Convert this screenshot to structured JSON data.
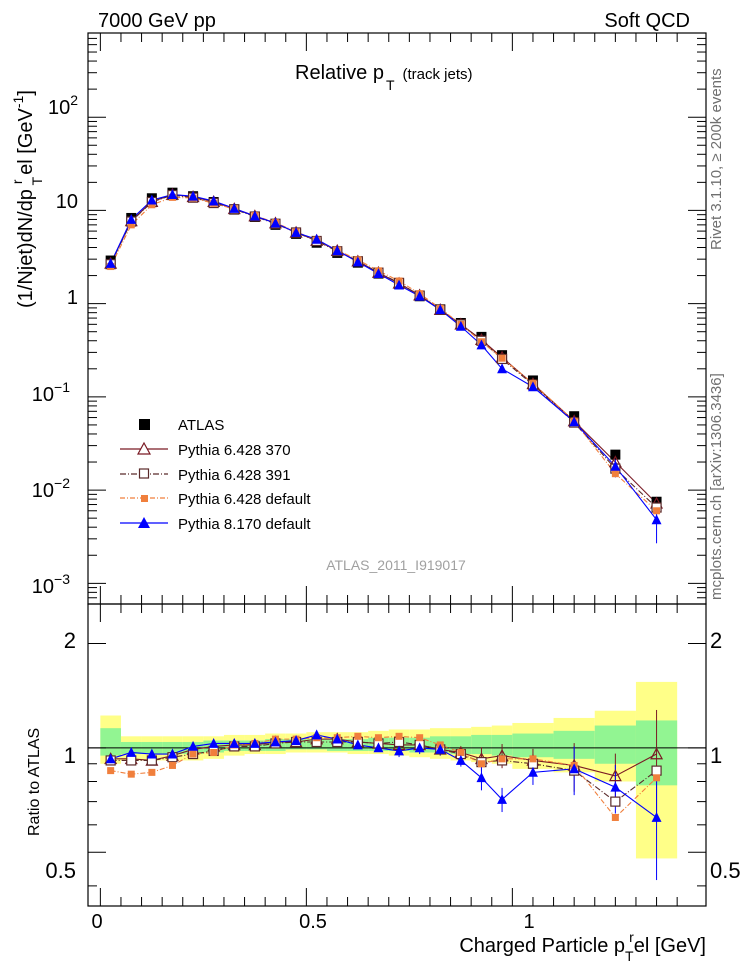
{
  "header": {
    "left": "7000 GeV pp",
    "right": "Soft QCD"
  },
  "plot_title": {
    "main": "Relative p",
    "sub": "T",
    "suffix": "(track jets)"
  },
  "side_labels": {
    "top": "Rivet 3.1.10, ≥ 200k events",
    "bottom": "mcplots.cern.ch [arXiv:1306.3436]"
  },
  "watermark": "ATLAS_2011_I919017",
  "ylabel_main": "(1/Njet)dN/dp",
  "ylabel_super": "r",
  "ylabel_sub": "T",
  "ylabel_tail": "el [GeV",
  "ylabel_unit_sup": "-1",
  "ylabel_close": "]",
  "ylabel_ratio": "Ratio to ATLAS",
  "xlabel_main": "Charged Particle p",
  "xlabel_sub": "T",
  "xlabel_super": "r",
  "xlabel_tail": "el [GeV]",
  "main_tick_labels": [
    "10",
    "10",
    "1",
    "10",
    "10",
    "10"
  ],
  "main_tick_exps": [
    "2",
    "",
    "",
    "−1",
    "−2",
    "−3"
  ],
  "ratio_tick_labels": [
    "2",
    "1",
    "0.5"
  ],
  "x_tick_labels": [
    "0",
    "0.5",
    "1"
  ],
  "legend": [
    {
      "name": "ATLAS",
      "color": "#000000",
      "marker": "filled-square"
    },
    {
      "name": "Pythia 6.428 370",
      "color": "#7a1a24",
      "marker": "open-triangle"
    },
    {
      "name": "Pythia 6.428 391",
      "color": "#5a2a2a",
      "marker": "open-square"
    },
    {
      "name": "Pythia 6.428 default",
      "color": "#f07f3c",
      "marker": "filled-square-small"
    },
    {
      "name": "Pythia 8.170 default",
      "color": "#0000ff",
      "marker": "filled-triangle"
    }
  ],
  "chart_data": [
    {
      "type": "scatter",
      "panel": "main",
      "log_y": true,
      "xlim": [
        -0.03,
        1.47
      ],
      "ylim": [
        0.0006,
        800
      ],
      "x": [
        0.025,
        0.075,
        0.125,
        0.175,
        0.225,
        0.275,
        0.325,
        0.375,
        0.425,
        0.475,
        0.525,
        0.575,
        0.625,
        0.675,
        0.725,
        0.775,
        0.825,
        0.875,
        0.925,
        0.975,
        1.05,
        1.15,
        1.25,
        1.35
      ],
      "series": [
        {
          "name": "ATLAS",
          "values": [
            2.9,
            8.3,
            13.5,
            15.5,
            14.2,
            12.3,
            10.2,
            8.5,
            7.0,
            5.6,
            4.5,
            3.5,
            2.75,
            2.1,
            1.62,
            1.2,
            0.87,
            0.62,
            0.44,
            0.28,
            0.15,
            0.062,
            0.024,
            0.0075
          ]
        },
        {
          "name": "Pythia 6.428 370",
          "values": [
            2.7,
            7.7,
            12.4,
            14.8,
            14.0,
            12.4,
            10.4,
            8.7,
            7.3,
            5.8,
            4.75,
            3.7,
            2.85,
            2.15,
            1.65,
            1.23,
            0.86,
            0.6,
            0.41,
            0.265,
            0.138,
            0.055,
            0.02,
            0.0072
          ]
        },
        {
          "name": "Pythia 6.428 391",
          "values": [
            2.65,
            7.6,
            12.3,
            14.6,
            13.7,
            12.0,
            10.3,
            8.6,
            7.2,
            5.8,
            4.7,
            3.65,
            2.85,
            2.15,
            1.67,
            1.22,
            0.86,
            0.6,
            0.4,
            0.255,
            0.135,
            0.053,
            0.017,
            0.0065
          ]
        },
        {
          "name": "Pythia 6.428 default",
          "values": [
            2.5,
            7.0,
            11.5,
            13.8,
            13.6,
            11.9,
            10.4,
            8.8,
            7.4,
            5.9,
            4.8,
            3.75,
            2.95,
            2.25,
            1.75,
            1.28,
            0.89,
            0.6,
            0.39,
            0.26,
            0.14,
            0.055,
            0.015,
            0.006
          ]
        },
        {
          "name": "Pythia 8.170 default",
          "values": [
            2.7,
            8.0,
            12.9,
            14.8,
            14.2,
            12.6,
            10.5,
            8.7,
            7.3,
            5.8,
            4.9,
            3.7,
            2.8,
            2.1,
            1.58,
            1.2,
            0.86,
            0.57,
            0.36,
            0.2,
            0.128,
            0.054,
            0.018,
            0.0048
          ]
        }
      ]
    },
    {
      "type": "scatter",
      "panel": "ratio",
      "log_y": true,
      "xlim": [
        -0.03,
        1.47
      ],
      "ylim": [
        0.35,
        2.6
      ],
      "x": [
        0.025,
        0.075,
        0.125,
        0.175,
        0.225,
        0.275,
        0.325,
        0.375,
        0.425,
        0.475,
        0.525,
        0.575,
        0.625,
        0.675,
        0.725,
        0.775,
        0.825,
        0.875,
        0.925,
        0.975,
        1.05,
        1.15,
        1.25,
        1.35
      ],
      "band_edges": [
        0.0,
        0.05,
        0.1,
        0.15,
        0.2,
        0.25,
        0.3,
        0.35,
        0.4,
        0.45,
        0.5,
        0.55,
        0.6,
        0.65,
        0.7,
        0.75,
        0.8,
        0.85,
        0.9,
        0.95,
        1.0,
        1.1,
        1.2,
        1.3,
        1.4
      ],
      "band_yellow": [
        [
          0.9,
          1.24
        ],
        [
          0.92,
          1.08
        ],
        [
          0.92,
          1.08
        ],
        [
          0.92,
          1.08
        ],
        [
          0.92,
          1.08
        ],
        [
          0.93,
          1.08
        ],
        [
          0.95,
          1.09
        ],
        [
          0.96,
          1.09
        ],
        [
          0.96,
          1.1
        ],
        [
          0.97,
          1.1
        ],
        [
          0.97,
          1.11
        ],
        [
          0.97,
          1.11
        ],
        [
          0.96,
          1.11
        ],
        [
          0.96,
          1.12
        ],
        [
          0.95,
          1.13
        ],
        [
          0.94,
          1.13
        ],
        [
          0.93,
          1.14
        ],
        [
          0.92,
          1.14
        ],
        [
          0.91,
          1.15
        ],
        [
          0.9,
          1.16
        ],
        [
          0.87,
          1.18
        ],
        [
          0.85,
          1.22
        ],
        [
          0.8,
          1.28
        ],
        [
          0.48,
          1.55
        ]
      ],
      "band_green": [
        [
          0.95,
          1.14
        ],
        [
          0.96,
          1.04
        ],
        [
          0.96,
          1.04
        ],
        [
          0.96,
          1.04
        ],
        [
          0.96,
          1.04
        ],
        [
          0.97,
          1.05
        ],
        [
          0.98,
          1.05
        ],
        [
          0.98,
          1.05
        ],
        [
          0.98,
          1.06
        ],
        [
          0.99,
          1.06
        ],
        [
          0.99,
          1.06
        ],
        [
          0.98,
          1.06
        ],
        [
          0.98,
          1.06
        ],
        [
          0.98,
          1.07
        ],
        [
          0.98,
          1.07
        ],
        [
          0.97,
          1.07
        ],
        [
          0.97,
          1.08
        ],
        [
          0.96,
          1.08
        ],
        [
          0.96,
          1.09
        ],
        [
          0.95,
          1.09
        ],
        [
          0.94,
          1.1
        ],
        [
          0.93,
          1.12
        ],
        [
          0.9,
          1.16
        ],
        [
          0.78,
          1.2
        ]
      ],
      "series": [
        {
          "name": "Pythia 6.428 370",
          "values": [
            0.93,
            0.93,
            0.92,
            0.95,
            0.99,
            1.01,
            1.02,
            1.02,
            1.04,
            1.04,
            1.06,
            1.06,
            1.04,
            1.03,
            1.02,
            1.02,
            0.99,
            0.97,
            0.93,
            0.95,
            0.92,
            0.89,
            0.83,
            0.96
          ]
        },
        {
          "name": "Pythia 6.428 391",
          "values": [
            0.92,
            0.92,
            0.92,
            0.94,
            0.96,
            0.98,
            1.01,
            1.01,
            1.03,
            1.04,
            1.04,
            1.04,
            1.04,
            1.03,
            1.04,
            1.02,
            0.99,
            0.96,
            0.91,
            0.92,
            0.9,
            0.86,
            0.7,
            0.86
          ]
        },
        {
          "name": "Pythia 6.428 default",
          "values": [
            0.86,
            0.84,
            0.85,
            0.89,
            0.96,
            0.97,
            1.02,
            1.03,
            1.06,
            1.06,
            1.07,
            1.07,
            1.08,
            1.07,
            1.08,
            1.07,
            1.02,
            0.97,
            0.9,
            0.93,
            0.93,
            0.89,
            0.63,
            0.82
          ]
        },
        {
          "name": "Pythia 8.170 default",
          "values": [
            0.93,
            0.97,
            0.96,
            0.96,
            1.01,
            1.03,
            1.03,
            1.03,
            1.04,
            1.05,
            1.09,
            1.06,
            1.02,
            1.0,
            0.98,
            1.0,
            0.99,
            0.92,
            0.82,
            0.71,
            0.85,
            0.87,
            0.77,
            0.63
          ]
        }
      ]
    }
  ]
}
